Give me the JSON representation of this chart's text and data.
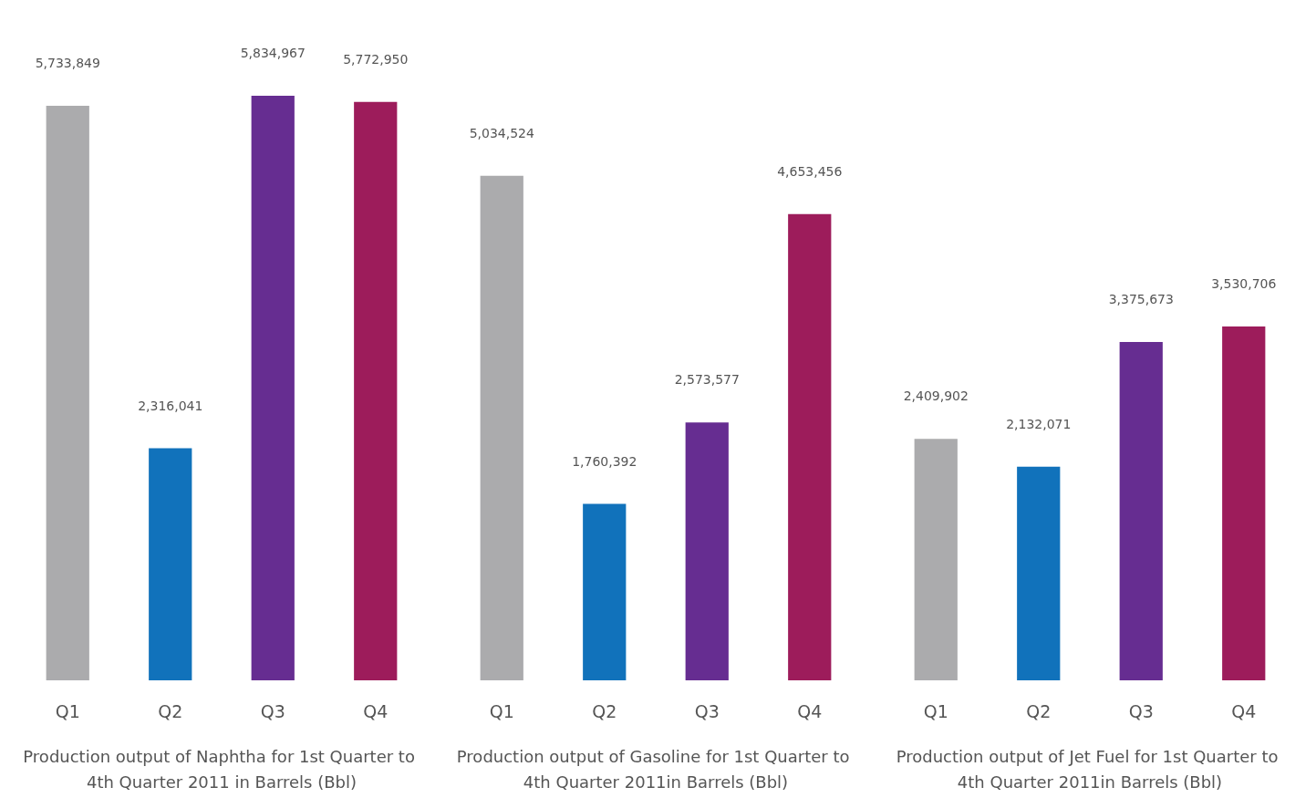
{
  "chart_data": [
    {
      "type": "bar",
      "title": "Production output of Naphtha for 1st Quarter to 4th Quarter 2011 in Barrels (Bbl)",
      "categories": [
        "Q1",
        "Q2",
        "Q3",
        "Q4"
      ],
      "values": [
        5733849,
        2316041,
        5834967,
        5772950
      ],
      "value_labels": [
        "5,733,849",
        "2,316,041",
        "5,834,967",
        "5,772,950"
      ],
      "colors": [
        "#ababad",
        "#1172bb",
        "#662d91",
        "#9d1c5b"
      ],
      "grid": false,
      "tick_labels": "x"
    },
    {
      "type": "bar",
      "title": "Production output of Gasoline for 1st Quarter to 4th Quarter 2011in Barrels (Bbl)",
      "categories": [
        "Q1",
        "Q2",
        "Q3",
        "Q4"
      ],
      "values": [
        5034524,
        1760392,
        2573577,
        4653456
      ],
      "value_labels": [
        "5,034,524",
        "1,760,392",
        "2,573,577",
        "4,653,456"
      ],
      "colors": [
        "#ababad",
        "#1172bb",
        "#662d91",
        "#9d1c5b"
      ],
      "grid": false,
      "tick_labels": "x"
    },
    {
      "type": "bar",
      "title": "Production output of Jet Fuel for 1st Quarter to 4th Quarter 2011in Barrels (Bbl)",
      "categories": [
        "Q1",
        "Q2",
        "Q3",
        "Q4"
      ],
      "values": [
        2409902,
        2132071,
        3375673,
        3530706
      ],
      "value_labels": [
        "2,409,902",
        "2,132,071",
        "3,375,673",
        "3,530,706"
      ],
      "colors": [
        "#ababad",
        "#1172bb",
        "#662d91",
        "#9d1c5b"
      ],
      "grid": false,
      "tick_labels": "x"
    }
  ]
}
